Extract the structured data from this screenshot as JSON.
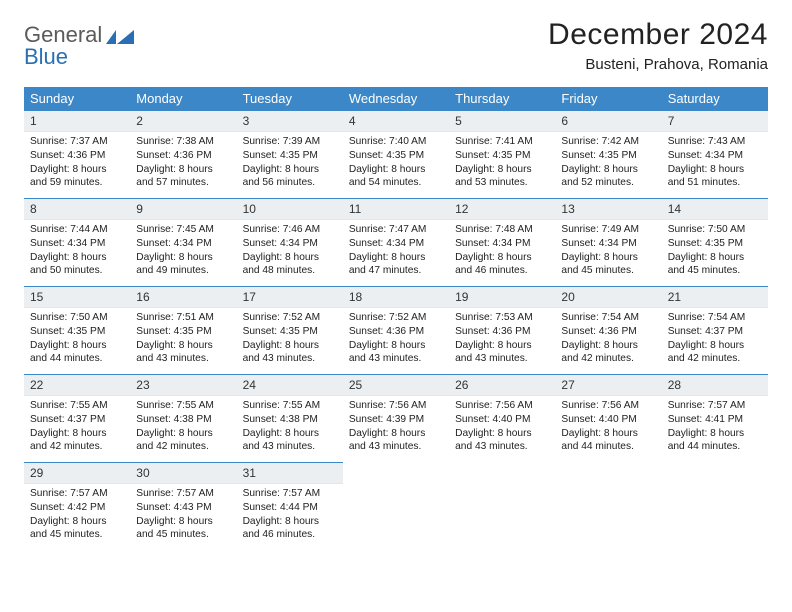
{
  "logo": {
    "word1": "General",
    "word2": "Blue"
  },
  "title": "December 2024",
  "location": "Busteni, Prahova, Romania",
  "colors": {
    "header_bg": "#3b87c8",
    "header_fg": "#ffffff",
    "daynum_bg": "#eceff1",
    "border": "#3b87c8",
    "logo_gray": "#5b5b5b",
    "logo_blue": "#2a6fb5",
    "text": "#222222",
    "page_bg": "#ffffff"
  },
  "weekdays": [
    "Sunday",
    "Monday",
    "Tuesday",
    "Wednesday",
    "Thursday",
    "Friday",
    "Saturday"
  ],
  "days": [
    {
      "num": "1",
      "sunrise": "7:37 AM",
      "sunset": "4:36 PM",
      "daylight": "8 hours and 59 minutes."
    },
    {
      "num": "2",
      "sunrise": "7:38 AM",
      "sunset": "4:36 PM",
      "daylight": "8 hours and 57 minutes."
    },
    {
      "num": "3",
      "sunrise": "7:39 AM",
      "sunset": "4:35 PM",
      "daylight": "8 hours and 56 minutes."
    },
    {
      "num": "4",
      "sunrise": "7:40 AM",
      "sunset": "4:35 PM",
      "daylight": "8 hours and 54 minutes."
    },
    {
      "num": "5",
      "sunrise": "7:41 AM",
      "sunset": "4:35 PM",
      "daylight": "8 hours and 53 minutes."
    },
    {
      "num": "6",
      "sunrise": "7:42 AM",
      "sunset": "4:35 PM",
      "daylight": "8 hours and 52 minutes."
    },
    {
      "num": "7",
      "sunrise": "7:43 AM",
      "sunset": "4:34 PM",
      "daylight": "8 hours and 51 minutes."
    },
    {
      "num": "8",
      "sunrise": "7:44 AM",
      "sunset": "4:34 PM",
      "daylight": "8 hours and 50 minutes."
    },
    {
      "num": "9",
      "sunrise": "7:45 AM",
      "sunset": "4:34 PM",
      "daylight": "8 hours and 49 minutes."
    },
    {
      "num": "10",
      "sunrise": "7:46 AM",
      "sunset": "4:34 PM",
      "daylight": "8 hours and 48 minutes."
    },
    {
      "num": "11",
      "sunrise": "7:47 AM",
      "sunset": "4:34 PM",
      "daylight": "8 hours and 47 minutes."
    },
    {
      "num": "12",
      "sunrise": "7:48 AM",
      "sunset": "4:34 PM",
      "daylight": "8 hours and 46 minutes."
    },
    {
      "num": "13",
      "sunrise": "7:49 AM",
      "sunset": "4:34 PM",
      "daylight": "8 hours and 45 minutes."
    },
    {
      "num": "14",
      "sunrise": "7:50 AM",
      "sunset": "4:35 PM",
      "daylight": "8 hours and 45 minutes."
    },
    {
      "num": "15",
      "sunrise": "7:50 AM",
      "sunset": "4:35 PM",
      "daylight": "8 hours and 44 minutes."
    },
    {
      "num": "16",
      "sunrise": "7:51 AM",
      "sunset": "4:35 PM",
      "daylight": "8 hours and 43 minutes."
    },
    {
      "num": "17",
      "sunrise": "7:52 AM",
      "sunset": "4:35 PM",
      "daylight": "8 hours and 43 minutes."
    },
    {
      "num": "18",
      "sunrise": "7:52 AM",
      "sunset": "4:36 PM",
      "daylight": "8 hours and 43 minutes."
    },
    {
      "num": "19",
      "sunrise": "7:53 AM",
      "sunset": "4:36 PM",
      "daylight": "8 hours and 43 minutes."
    },
    {
      "num": "20",
      "sunrise": "7:54 AM",
      "sunset": "4:36 PM",
      "daylight": "8 hours and 42 minutes."
    },
    {
      "num": "21",
      "sunrise": "7:54 AM",
      "sunset": "4:37 PM",
      "daylight": "8 hours and 42 minutes."
    },
    {
      "num": "22",
      "sunrise": "7:55 AM",
      "sunset": "4:37 PM",
      "daylight": "8 hours and 42 minutes."
    },
    {
      "num": "23",
      "sunrise": "7:55 AM",
      "sunset": "4:38 PM",
      "daylight": "8 hours and 42 minutes."
    },
    {
      "num": "24",
      "sunrise": "7:55 AM",
      "sunset": "4:38 PM",
      "daylight": "8 hours and 43 minutes."
    },
    {
      "num": "25",
      "sunrise": "7:56 AM",
      "sunset": "4:39 PM",
      "daylight": "8 hours and 43 minutes."
    },
    {
      "num": "26",
      "sunrise": "7:56 AM",
      "sunset": "4:40 PM",
      "daylight": "8 hours and 43 minutes."
    },
    {
      "num": "27",
      "sunrise": "7:56 AM",
      "sunset": "4:40 PM",
      "daylight": "8 hours and 44 minutes."
    },
    {
      "num": "28",
      "sunrise": "7:57 AM",
      "sunset": "4:41 PM",
      "daylight": "8 hours and 44 minutes."
    },
    {
      "num": "29",
      "sunrise": "7:57 AM",
      "sunset": "4:42 PM",
      "daylight": "8 hours and 45 minutes."
    },
    {
      "num": "30",
      "sunrise": "7:57 AM",
      "sunset": "4:43 PM",
      "daylight": "8 hours and 45 minutes."
    },
    {
      "num": "31",
      "sunrise": "7:57 AM",
      "sunset": "4:44 PM",
      "daylight": "8 hours and 46 minutes."
    }
  ],
  "labels": {
    "sunrise": "Sunrise: ",
    "sunset": "Sunset: ",
    "daylight": "Daylight: "
  },
  "layout": {
    "first_weekday_index": 0,
    "weeks": 5,
    "cols": 7
  }
}
